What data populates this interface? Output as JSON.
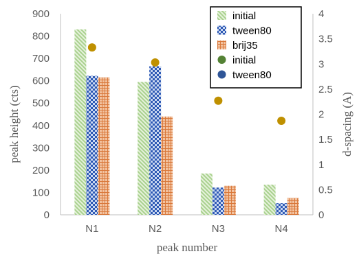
{
  "chart_data": {
    "type": "bar",
    "categories": [
      "N1",
      "N2",
      "N3",
      "N4"
    ],
    "series": [
      {
        "name": "initial",
        "values": [
          830,
          595,
          185,
          135
        ],
        "color": "#a9d18e",
        "pattern": "diagonal-stripes"
      },
      {
        "name": "tween80",
        "values": [
          622,
          665,
          122,
          52
        ],
        "color": "#4472c4",
        "pattern": "checkered"
      },
      {
        "name": "brij35",
        "values": [
          615,
          440,
          130,
          75
        ],
        "color": "#c55a11",
        "pattern": "crosshatch"
      }
    ],
    "scatter_series": [
      {
        "name": "initial",
        "values": [
          null,
          null,
          null,
          null
        ],
        "color": "#548235"
      },
      {
        "name": "tween80",
        "values": [
          null,
          null,
          null,
          null
        ],
        "color": "#2f5597"
      },
      {
        "name": "",
        "values": [
          3.33,
          3.03,
          2.27,
          1.87
        ],
        "color": "#bf9000"
      }
    ],
    "xlabel": "peak number",
    "ylabel": "peak height (cts)",
    "y2label": "d-spacing (A)",
    "ylim": [
      0,
      900
    ],
    "y_ticks": [
      "0",
      "100",
      "200",
      "300",
      "400",
      "500",
      "600",
      "700",
      "800",
      "900"
    ],
    "y2lim": [
      0,
      4
    ],
    "y2_ticks": [
      "0",
      "0.5",
      "1",
      "1.5",
      "2",
      "2.5",
      "3",
      "3.5",
      "4"
    ],
    "grid": false,
    "legend_position": "top-right",
    "legend": [
      {
        "label": "initial",
        "kind": "bar",
        "series": 0
      },
      {
        "label": "tween80",
        "kind": "bar",
        "series": 1
      },
      {
        "label": "brij35",
        "kind": "bar",
        "series": 2
      },
      {
        "label": "initial",
        "kind": "marker",
        "series": 0
      },
      {
        "label": "tween80",
        "kind": "marker",
        "series": 1
      }
    ]
  }
}
